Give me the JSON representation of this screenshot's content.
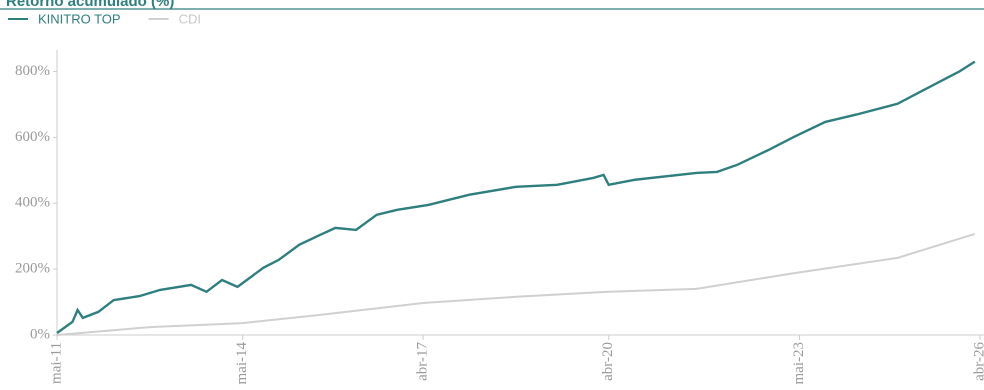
{
  "chart_data": {
    "type": "line",
    "title": "Retorno acumulado (%)",
    "series": [
      {
        "name": "KINITRO TOP",
        "color": "#2e7f7e",
        "x": [
          "2011-05",
          "2011-08",
          "2011-09",
          "2011-10",
          "2012-01",
          "2012-04",
          "2012-09",
          "2013-01",
          "2013-07",
          "2013-10",
          "2014-01",
          "2014-04",
          "2014-09",
          "2014-12",
          "2015-04",
          "2015-08",
          "2015-11",
          "2016-03",
          "2016-07",
          "2016-11",
          "2017-05",
          "2018-01",
          "2018-10",
          "2019-06",
          "2020-01",
          "2020-03",
          "2020-04",
          "2020-09",
          "2021-09",
          "2022-01",
          "2022-05",
          "2022-11",
          "2023-04",
          "2023-10",
          "2024-04",
          "2024-12",
          "2025-06",
          "2025-12",
          "2026-03"
        ],
        "values": [
          6,
          40,
          76,
          52,
          70,
          106,
          118,
          137,
          152,
          131,
          167,
          146,
          204,
          228,
          274,
          304,
          325,
          319,
          365,
          380,
          395,
          426,
          450,
          456,
          477,
          486,
          456,
          471,
          492,
          495,
          517,
          562,
          602,
          647,
          669,
          702,
          751,
          800,
          830
        ]
      },
      {
        "name": "CDI",
        "color": "#d0d0d0",
        "x": [
          "2011-05",
          "2012-11",
          "2014-05",
          "2015-08",
          "2017-04",
          "2018-10",
          "2020-04",
          "2021-09",
          "2023-04",
          "2024-12",
          "2026-03"
        ],
        "values": [
          0,
          24,
          36,
          61,
          97,
          116,
          131,
          140,
          188,
          234,
          307
        ]
      }
    ],
    "xlim": [
      "2011-05",
      "2026-04"
    ],
    "xticks": [
      {
        "value": "2011-05",
        "label": "mai-11"
      },
      {
        "value": "2014-05",
        "label": "mai-14"
      },
      {
        "value": "2017-04",
        "label": "abr-17"
      },
      {
        "value": "2020-04",
        "label": "abr-20"
      },
      {
        "value": "2023-05",
        "label": "mai-23"
      },
      {
        "value": "2026-04",
        "label": "abr-26"
      }
    ],
    "ylim": [
      0,
      850
    ],
    "yticks": [
      {
        "value": 0,
        "label": "0%"
      },
      {
        "value": 200,
        "label": "200%"
      },
      {
        "value": 400,
        "label": "400%"
      },
      {
        "value": 600,
        "label": "600%"
      },
      {
        "value": 800,
        "label": "800%"
      }
    ]
  }
}
